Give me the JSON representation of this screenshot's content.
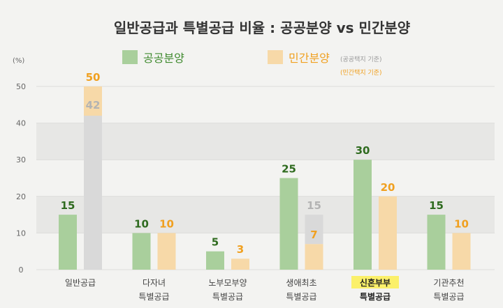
{
  "chart_data": {
    "type": "bar",
    "title": "일반공급과 특별공급 비율 : 공공분양 vs 민간분양",
    "ylabel": "(%)",
    "ylim": [
      0,
      50
    ],
    "yticks": [
      0,
      10,
      20,
      30,
      40,
      50
    ],
    "grid": true,
    "legend_position": "top",
    "categories": [
      [
        "일반공급"
      ],
      [
        "다자녀",
        "특별공급"
      ],
      [
        "노부모부양",
        "특별공급"
      ],
      [
        "생애최초",
        "특별공급"
      ],
      [
        "신혼부부",
        "특별공급"
      ],
      [
        "기관추천",
        "특별공급"
      ]
    ],
    "highlighted_category": 4,
    "series": [
      {
        "name": "공공분양",
        "color": "#a9cf9c",
        "label_color": "#2f6b1f",
        "values": [
          15,
          10,
          5,
          25,
          30,
          15
        ]
      },
      {
        "name": "민간분양",
        "note": "(공공택지 기준)",
        "color": "#f7d9a8",
        "label_color": "#f0a020",
        "values": [
          50,
          10,
          3,
          7,
          20,
          10
        ]
      },
      {
        "name": "민간분양",
        "note": "(민간택지 기준)",
        "color": "#d9d9d9",
        "label_color": "#b3b3b3",
        "values": [
          42,
          null,
          null,
          15,
          null,
          null
        ]
      }
    ]
  }
}
